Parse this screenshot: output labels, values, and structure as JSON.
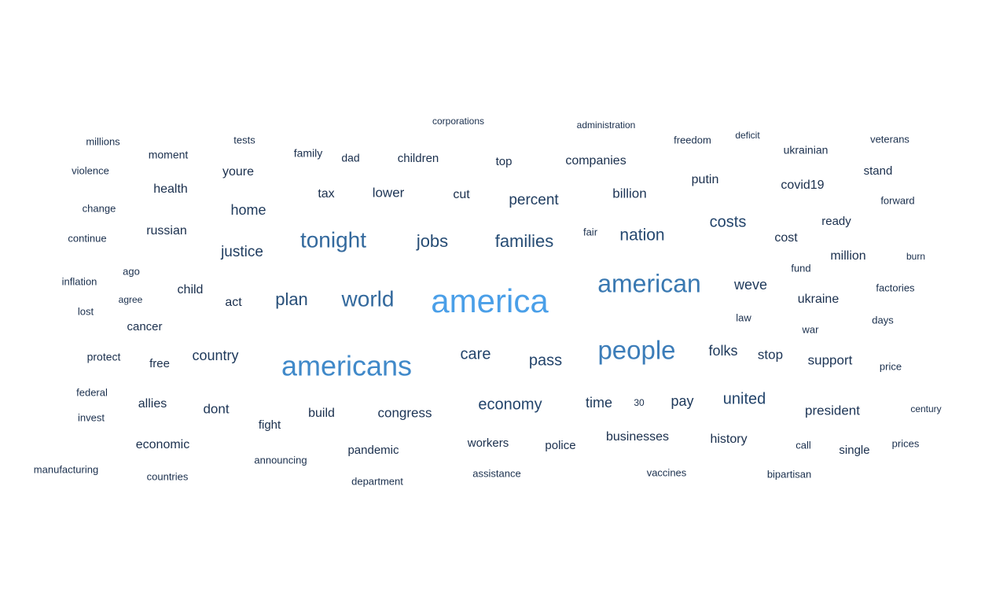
{
  "chart_data": {
    "type": "wordcloud",
    "color_scale": {
      "low": "#1a2f4d",
      "high": "#4a9fe8"
    },
    "words": [
      {
        "text": "america",
        "weight": 100
      },
      {
        "text": "americans",
        "weight": 84
      },
      {
        "text": "people",
        "weight": 76
      },
      {
        "text": "american",
        "weight": 72
      },
      {
        "text": "world",
        "weight": 62
      },
      {
        "text": "tonight",
        "weight": 62
      },
      {
        "text": "plan",
        "weight": 46
      },
      {
        "text": "families",
        "weight": 44
      },
      {
        "text": "jobs",
        "weight": 44
      },
      {
        "text": "nation",
        "weight": 42
      },
      {
        "text": "costs",
        "weight": 40
      },
      {
        "text": "care",
        "weight": 40
      },
      {
        "text": "pass",
        "weight": 40
      },
      {
        "text": "economy",
        "weight": 40
      },
      {
        "text": "united",
        "weight": 40
      },
      {
        "text": "justice",
        "weight": 36
      },
      {
        "text": "percent",
        "weight": 36
      },
      {
        "text": "folks",
        "weight": 34
      },
      {
        "text": "country",
        "weight": 34
      },
      {
        "text": "home",
        "weight": 34
      },
      {
        "text": "weve",
        "weight": 34
      },
      {
        "text": "time",
        "weight": 34
      },
      {
        "text": "pay",
        "weight": 34
      },
      {
        "text": "stop",
        "weight": 32
      },
      {
        "text": "support",
        "weight": 32
      },
      {
        "text": "president",
        "weight": 32
      },
      {
        "text": "dont",
        "weight": 32
      },
      {
        "text": "congress",
        "weight": 32
      },
      {
        "text": "lower",
        "weight": 32
      },
      {
        "text": "billion",
        "weight": 32
      },
      {
        "text": "ukraine",
        "weight": 30
      },
      {
        "text": "youre",
        "weight": 30
      },
      {
        "text": "tax",
        "weight": 30
      },
      {
        "text": "cut",
        "weight": 30
      },
      {
        "text": "covid19",
        "weight": 30
      },
      {
        "text": "putin",
        "weight": 30
      },
      {
        "text": "act",
        "weight": 30
      },
      {
        "text": "build",
        "weight": 30
      },
      {
        "text": "russian",
        "weight": 30
      },
      {
        "text": "health",
        "weight": 30
      },
      {
        "text": "companies",
        "weight": 28
      },
      {
        "text": "cost",
        "weight": 28
      },
      {
        "text": "child",
        "weight": 28
      },
      {
        "text": "allies",
        "weight": 28
      },
      {
        "text": "economic",
        "weight": 28
      },
      {
        "text": "businesses",
        "weight": 28
      },
      {
        "text": "history",
        "weight": 28
      },
      {
        "text": "million",
        "weight": 28
      },
      {
        "text": "cancer",
        "weight": 26
      },
      {
        "text": "free",
        "weight": 26
      },
      {
        "text": "workers",
        "weight": 26
      },
      {
        "text": "fight",
        "weight": 26
      },
      {
        "text": "pandemic",
        "weight": 26
      },
      {
        "text": "police",
        "weight": 26
      },
      {
        "text": "single",
        "weight": 26
      },
      {
        "text": "ready",
        "weight": 26
      },
      {
        "text": "stand",
        "weight": 26
      },
      {
        "text": "top",
        "weight": 26
      },
      {
        "text": "children",
        "weight": 26
      },
      {
        "text": "moment",
        "weight": 24
      },
      {
        "text": "protect",
        "weight": 24
      },
      {
        "text": "dad",
        "weight": 24
      },
      {
        "text": "family",
        "weight": 24
      },
      {
        "text": "ukrainian",
        "weight": 24
      },
      {
        "text": "vaccines",
        "weight": 22
      },
      {
        "text": "announcing",
        "weight": 22
      },
      {
        "text": "violence",
        "weight": 22
      },
      {
        "text": "ago",
        "weight": 22
      },
      {
        "text": "federal",
        "weight": 22
      },
      {
        "text": "invest",
        "weight": 22
      },
      {
        "text": "manufacturing",
        "weight": 22
      },
      {
        "text": "veterans",
        "weight": 22
      },
      {
        "text": "freedom",
        "weight": 22
      },
      {
        "text": "tests",
        "weight": 22
      },
      {
        "text": "millions",
        "weight": 22
      },
      {
        "text": "inflation",
        "weight": 22
      },
      {
        "text": "call",
        "weight": 22
      },
      {
        "text": "factories",
        "weight": 22
      },
      {
        "text": "forward",
        "weight": 22
      },
      {
        "text": "fund",
        "weight": 22
      },
      {
        "text": "department",
        "weight": 20
      },
      {
        "text": "assistance",
        "weight": 20
      },
      {
        "text": "countries",
        "weight": 20
      },
      {
        "text": "bipartisan",
        "weight": 20
      },
      {
        "text": "prices",
        "weight": 22
      },
      {
        "text": "price",
        "weight": 20
      },
      {
        "text": "war",
        "weight": 20
      },
      {
        "text": "days",
        "weight": 20
      },
      {
        "text": "law",
        "weight": 20
      },
      {
        "text": "lost",
        "weight": 22
      },
      {
        "text": "change",
        "weight": 20
      },
      {
        "text": "continue",
        "weight": 20
      },
      {
        "text": "fair",
        "weight": 20
      },
      {
        "text": "agree",
        "weight": 18
      },
      {
        "text": "corporations",
        "weight": 18
      },
      {
        "text": "administration",
        "weight": 18
      },
      {
        "text": "deficit",
        "weight": 18
      },
      {
        "text": "burn",
        "weight": 18
      },
      {
        "text": "century",
        "weight": 18
      },
      {
        "text": "30",
        "weight": 18
      }
    ]
  }
}
